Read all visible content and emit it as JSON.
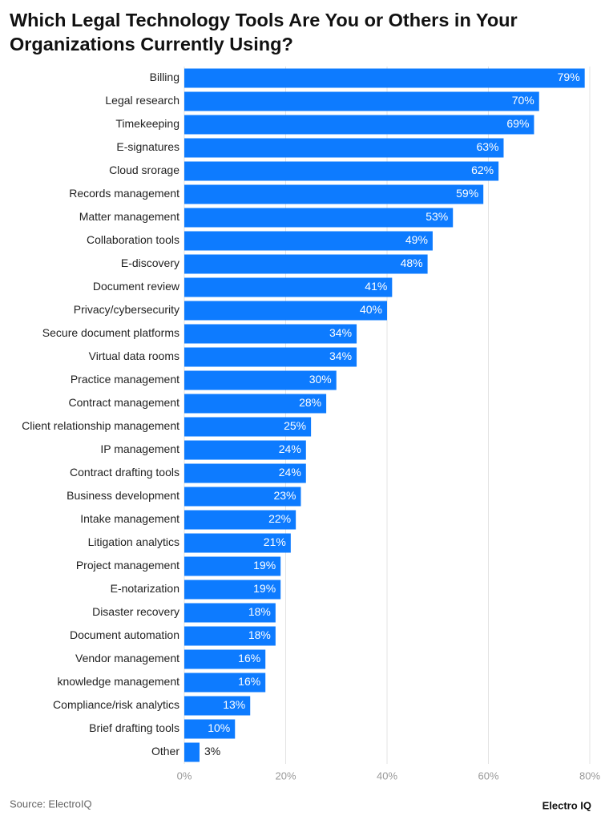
{
  "chart_data": {
    "type": "bar",
    "orientation": "horizontal",
    "title": "Which Legal Technology Tools Are You or Others in Your Organizations Currently Using?",
    "source": "Source: ElectroIQ",
    "brand": "Electro IQ",
    "categories": [
      "Billing",
      "Legal research",
      "Timekeeping",
      "E-signatures",
      "Cloud srorage",
      "Records management",
      "Matter management",
      "Collaboration tools",
      "E-discovery",
      "Document review",
      "Privacy/cybersecurity",
      "Secure document platforms",
      "Virtual data rooms",
      "Practice management",
      "Contract management",
      "Client relationship management",
      "IP management",
      "Contract drafting tools",
      "Business development",
      "Intake management",
      "Litigation analytics",
      "Project management",
      "E-notarization",
      "Disaster recovery",
      "Document automation",
      "Vendor management",
      "knowledge management",
      "Compliance/risk analytics",
      "Brief drafting tools",
      "Other"
    ],
    "values": [
      79,
      70,
      69,
      63,
      62,
      59,
      53,
      49,
      48,
      41,
      40,
      34,
      34,
      30,
      28,
      25,
      24,
      24,
      23,
      22,
      21,
      19,
      19,
      18,
      18,
      16,
      16,
      13,
      10,
      3
    ],
    "value_labels": [
      "79%",
      "70%",
      "69%",
      "63%",
      "62%",
      "59%",
      "53%",
      "49%",
      "48%",
      "41%",
      "40%",
      "34%",
      "34%",
      "30%",
      "28%",
      "25%",
      "24%",
      "24%",
      "23%",
      "22%",
      "21%",
      "19%",
      "19%",
      "18%",
      "18%",
      "16%",
      "16%",
      "13%",
      "10%",
      "3%"
    ],
    "color": "#0d7bff",
    "xlim": [
      0,
      80
    ],
    "xticks": [
      {
        "value": 0,
        "label": "0%"
      },
      {
        "value": 20,
        "label": "20%"
      },
      {
        "value": 40,
        "label": "40%"
      },
      {
        "value": 60,
        "label": "60%"
      },
      {
        "value": 80,
        "label": "80%"
      }
    ],
    "grid": true
  }
}
